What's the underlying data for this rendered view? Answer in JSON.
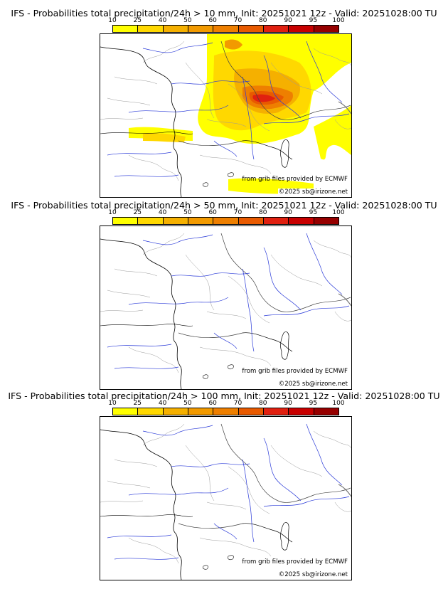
{
  "legend_ticks": [
    "10",
    "25",
    "40",
    "50",
    "60",
    "70",
    "80",
    "90",
    "95",
    "100"
  ],
  "legend_colors": [
    "#ffff00",
    "#ffd800",
    "#f5b000",
    "#f29a00",
    "#ee7f00",
    "#e85a00",
    "#e02010",
    "#c80000",
    "#960000",
    "#650000"
  ],
  "credits": {
    "source": "from grib files provided by ECMWF",
    "copyright": "©2025 sb@irizone.net"
  },
  "panels": [
    {
      "title": "IFS - Probabilities total precipitation/24h > 10 mm, Init: 20251021 12z - Valid: 20251028:00 TU",
      "threshold_mm": 10
    },
    {
      "title": "IFS - Probabilities total precipitation/24h > 50 mm, Init: 20251021 12z - Valid: 20251028:00 TU",
      "threshold_mm": 50
    },
    {
      "title": "IFS - Probabilities total precipitation/24h > 100 mm, Init: 20251021 12z - Valid: 20251028:00 TU",
      "threshold_mm": 100
    }
  ]
}
